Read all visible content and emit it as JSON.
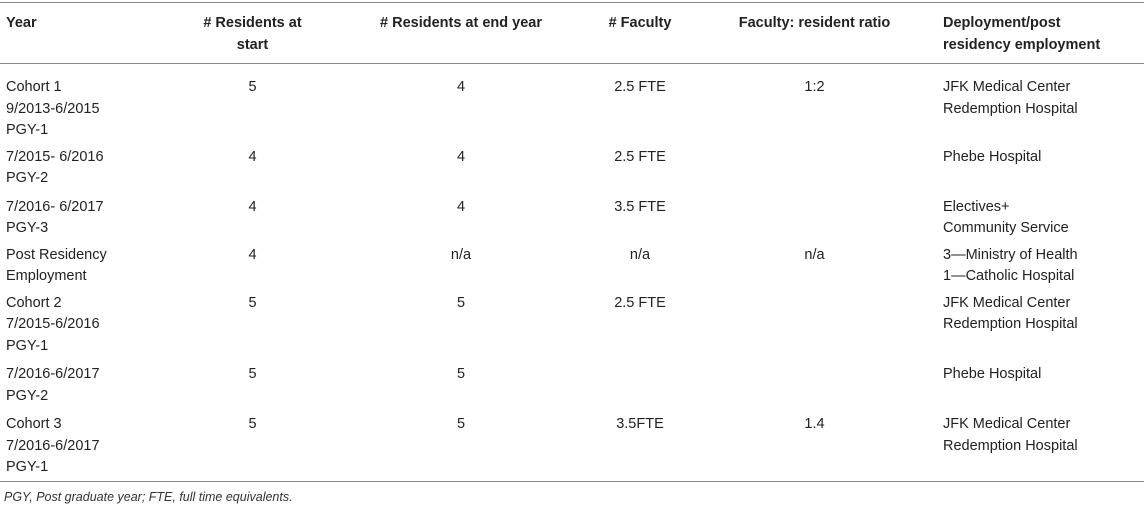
{
  "columns": [
    "Year",
    "# Residents at start",
    "# Residents at end year",
    "# Faculty",
    "Faculty: resident ratio",
    "Deployment/post residency employment"
  ],
  "header_lines": {
    "c1": [
      "Year"
    ],
    "c2": [
      "# Residents at",
      "start"
    ],
    "c3": [
      "# Residents at end year"
    ],
    "c4": [
      "# Faculty"
    ],
    "c5": [
      "Faculty: resident ratio"
    ],
    "c6": [
      "Deployment/post",
      "residency employment"
    ]
  },
  "rows": [
    {
      "year": [
        "Cohort 1",
        "9/2013-6/2015",
        "PGY-1"
      ],
      "start": "5",
      "end": "4",
      "faculty": "2.5 FTE",
      "ratio": "1:2",
      "deployment": [
        "JFK Medical Center",
        "Redemption Hospital"
      ]
    },
    {
      "year": [
        "7/2015- 6/2016",
        "PGY-2"
      ],
      "start": "4",
      "end": "4",
      "faculty": "2.5 FTE",
      "ratio": "",
      "deployment": [
        "Phebe Hospital"
      ]
    },
    {
      "year": [
        "7/2016- 6/2017",
        "PGY-3"
      ],
      "start": "4",
      "end": "4",
      "faculty": "3.5 FTE",
      "ratio": "",
      "deployment": [
        " Electives+",
        "Community Service"
      ]
    },
    {
      "year": [
        "Post Residency",
        "Employment"
      ],
      "start": "4",
      "end": "n/a",
      "faculty": "n/a",
      "ratio": "n/a",
      "deployment": [
        "3—Ministry of Health",
        "1—Catholic Hospital"
      ]
    },
    {
      "year": [
        "Cohort 2",
        "7/2015-6/2016",
        "PGY-1"
      ],
      "start": "5",
      "end": "5",
      "faculty": "2.5 FTE",
      "ratio": "",
      "deployment": [
        "JFK Medical Center",
        "Redemption Hospital"
      ]
    },
    {
      "year": [
        "7/2016-6/2017",
        "PGY-2"
      ],
      "start": "5",
      "end": "5",
      "faculty": "",
      "ratio": "",
      "deployment": [
        "Phebe Hospital"
      ]
    },
    {
      "year": [
        "Cohort 3",
        "7/2016-6/2017",
        "PGY-1"
      ],
      "start": "5",
      "end": "5",
      "faculty": "3.5FTE",
      "ratio": "1.4",
      "deployment": [
        "JFK Medical Center",
        "Redemption Hospital"
      ]
    }
  ],
  "footnote": "PGY, Post graduate year; FTE, full time equivalents."
}
